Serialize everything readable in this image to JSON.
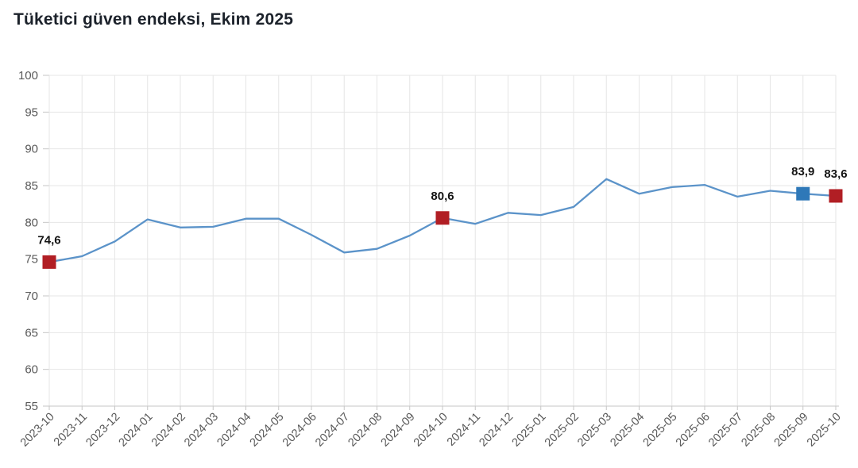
{
  "title": "Tüketici güven endeksi, Ekim 2025",
  "chart_data": {
    "type": "line",
    "title": "Tüketici güven endeksi, Ekim 2025",
    "categories": [
      "2023-10",
      "2023-11",
      "2023-12",
      "2024-01",
      "2024-02",
      "2024-03",
      "2024-04",
      "2024-05",
      "2024-06",
      "2024-07",
      "2024-08",
      "2024-09",
      "2024-10",
      "2024-11",
      "2024-12",
      "2025-01",
      "2025-02",
      "2025-03",
      "2025-04",
      "2025-05",
      "2025-06",
      "2025-07",
      "2025-08",
      "2025-09",
      "2025-10"
    ],
    "series": [
      {
        "name": "Tüketici güven endeksi",
        "values": [
          74.6,
          75.4,
          77.4,
          80.4,
          79.3,
          79.4,
          80.5,
          80.5,
          78.3,
          75.9,
          76.4,
          78.2,
          80.6,
          79.8,
          81.3,
          81.0,
          82.1,
          85.9,
          83.9,
          84.8,
          85.1,
          83.5,
          84.3,
          83.9,
          83.6
        ]
      }
    ],
    "ylim": [
      55,
      100
    ],
    "ytick_step": 5,
    "ytick_labels": [
      "55",
      "60",
      "65",
      "70",
      "75",
      "80",
      "85",
      "90",
      "95",
      "100"
    ],
    "grid": true,
    "legend": "none",
    "decimal_separator": ",",
    "highlighted_points": [
      {
        "index": 0,
        "category": "2023-10",
        "value": 74.6,
        "label": "74,6",
        "marker_color": "#b11e24"
      },
      {
        "index": 12,
        "category": "2024-10",
        "value": 80.6,
        "label": "80,6",
        "marker_color": "#b11e24"
      },
      {
        "index": 23,
        "category": "2025-09",
        "value": 83.9,
        "label": "83,9",
        "marker_color": "#2e78b8"
      },
      {
        "index": 24,
        "category": "2025-10",
        "value": 83.6,
        "label": "83,6",
        "marker_color": "#b11e24"
      }
    ],
    "colors": {
      "line": "#5b93c9",
      "highlight_red": "#b11e24",
      "highlight_blue": "#2e78b8",
      "gridline": "#e6e6e6",
      "axis_line": "#c6c6c6",
      "axis_text": "#595959",
      "point_label_text": "#141414",
      "title_text": "#1c222b",
      "background": "#ffffff"
    }
  }
}
